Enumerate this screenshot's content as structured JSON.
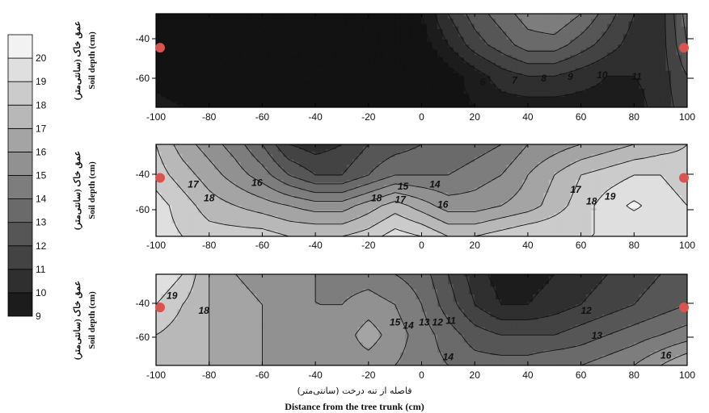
{
  "chart_data": {
    "type": "heatmap",
    "x_title_fa": "فاصله از تنه درخت (سانتی‌متر)",
    "x_title_en": "Distance from the tree trunk (cm)",
    "colorbar": {
      "min": 9,
      "max": 21,
      "labels": [
        9,
        10,
        11,
        12,
        13,
        14,
        15,
        16,
        17,
        18,
        19,
        20
      ]
    },
    "panels": [
      {
        "ylabel_fa": "عمق خاک (سانتی‌متر)",
        "ylabel_en": "Soil depth (cm)",
        "x_ticks": [
          -100,
          -80,
          -60,
          -40,
          -20,
          0,
          20,
          40,
          60,
          80,
          100
        ],
        "y_ticks": [
          -40,
          -60
        ],
        "xlim": [
          -100,
          100
        ],
        "ylim": [
          -75,
          -20
        ],
        "sample_points": [
          {
            "x": -100,
            "y": -40
          },
          {
            "x": 100,
            "y": -40
          }
        ],
        "contour_labels": [
          {
            "text": "8",
            "x": -68,
            "y": -44
          },
          {
            "text": "7",
            "x": -58,
            "y": -44
          },
          {
            "text": "8",
            "x": -46,
            "y": -44
          },
          {
            "text": "6",
            "x": -33,
            "y": -44
          },
          {
            "text": "4",
            "x": -15,
            "y": -44
          },
          {
            "text": "6",
            "x": 23,
            "y": -60
          },
          {
            "text": "7",
            "x": 35,
            "y": -59
          },
          {
            "text": "8",
            "x": 46,
            "y": -58
          },
          {
            "text": "9",
            "x": 56,
            "y": -57
          },
          {
            "text": "10",
            "x": 68,
            "y": -56
          },
          {
            "text": "11",
            "x": 81,
            "y": -57
          }
        ],
        "value_field": [
          [
            7,
            6.5,
            6,
            5.5,
            4.5,
            3.5,
            3,
            3.5,
            5,
            7,
            9,
            11,
            12.5,
            13.5,
            14.5,
            15,
            14,
            12.5,
            11,
            10.5,
            13.5
          ],
          [
            7.5,
            7.5,
            7,
            6.5,
            5.5,
            4.5,
            4,
            4.5,
            5.5,
            7,
            8.5,
            10,
            11.5,
            12.5,
            13.5,
            13.5,
            12.5,
            11.5,
            10.5,
            10.5,
            13
          ],
          [
            8.5,
            8,
            7.5,
            7,
            6.5,
            6,
            5.5,
            5.5,
            6,
            6.5,
            7.5,
            8.5,
            9.5,
            10.5,
            11,
            11,
            10.5,
            10,
            10,
            10.5,
            12
          ],
          [
            9.5,
            9,
            8.5,
            8,
            8,
            7.5,
            7,
            7,
            7,
            7.5,
            8,
            8.5,
            9,
            9.5,
            9.5,
            9.5,
            9.5,
            9.5,
            9.5,
            10.5,
            11.5
          ]
        ]
      },
      {
        "ylabel_fa": "عمق خاک (سانتی‌متر)",
        "ylabel_en": "Soil depth (cm)",
        "x_ticks": [
          -100,
          -80,
          -60,
          -40,
          -20,
          0,
          20,
          40,
          60,
          80,
          100
        ],
        "y_ticks": [
          -40,
          -60
        ],
        "xlim": [
          -100,
          100
        ],
        "ylim": [
          -75,
          -20
        ],
        "sample_points": [
          {
            "x": -100,
            "y": -40
          },
          {
            "x": 100,
            "y": -40
          }
        ],
        "contour_labels": [
          {
            "text": "17",
            "x": -86,
            "y": -44
          },
          {
            "text": "16",
            "x": -62,
            "y": -43
          },
          {
            "text": "18",
            "x": -80,
            "y": -52
          },
          {
            "text": "15",
            "x": -7,
            "y": -45
          },
          {
            "text": "14",
            "x": 5,
            "y": -44
          },
          {
            "text": "18",
            "x": -17,
            "y": -52
          },
          {
            "text": "17",
            "x": -8,
            "y": -53
          },
          {
            "text": "16",
            "x": 8,
            "y": -56
          },
          {
            "text": "17",
            "x": 58,
            "y": -47
          },
          {
            "text": "19",
            "x": 71,
            "y": -51
          },
          {
            "text": "18",
            "x": 64,
            "y": -54
          }
        ],
        "value_field": [
          [
            18,
            16.5,
            15.5,
            14.5,
            13,
            11,
            10.5,
            11,
            12,
            12.5,
            13,
            13,
            13.5,
            14,
            15,
            15.5,
            16,
            16.5,
            17,
            17.5,
            18
          ],
          [
            18.5,
            17.5,
            16.5,
            15.5,
            14.5,
            13,
            12,
            12,
            13,
            14,
            14,
            14,
            14.5,
            15,
            16,
            17,
            18,
            18.5,
            19,
            19,
            18.5
          ],
          [
            19.5,
            18.5,
            17.5,
            17,
            16.5,
            16,
            15.5,
            15.5,
            16.5,
            17.5,
            16.5,
            15.5,
            15.5,
            16,
            16.5,
            17.5,
            18.5,
            19.5,
            20.2,
            19.5,
            19
          ],
          [
            19.5,
            19,
            18.5,
            18.5,
            18.5,
            18,
            18,
            18,
            18.5,
            19.5,
            19,
            18,
            18,
            18.5,
            19,
            19,
            19,
            19,
            19,
            19,
            19
          ]
        ]
      },
      {
        "ylabel_fa": "عمق خاک (سانتی‌متر)",
        "ylabel_en": "Soil depth (cm)",
        "x_ticks": [
          -100,
          -80,
          -60,
          -40,
          -20,
          0,
          20,
          40,
          60,
          80,
          100
        ],
        "y_ticks": [
          -40,
          -60
        ],
        "xlim": [
          -100,
          100
        ],
        "ylim": [
          -75,
          -20
        ],
        "sample_points": [
          {
            "x": -100,
            "y": -40
          },
          {
            "x": 100,
            "y": -40
          }
        ],
        "contour_labels": [
          {
            "text": "19",
            "x": -94,
            "y": -33
          },
          {
            "text": "18",
            "x": -82,
            "y": -42
          },
          {
            "text": "15",
            "x": -10,
            "y": -49
          },
          {
            "text": "14",
            "x": -5,
            "y": -51
          },
          {
            "text": "13",
            "x": 1,
            "y": -49
          },
          {
            "text": "12",
            "x": 6,
            "y": -49
          },
          {
            "text": "11",
            "x": 11,
            "y": -48
          },
          {
            "text": "12",
            "x": 62,
            "y": -42
          },
          {
            "text": "13",
            "x": 66,
            "y": -57
          },
          {
            "text": "14",
            "x": 10,
            "y": -70
          },
          {
            "text": "16",
            "x": 92,
            "y": -69
          }
        ],
        "value_field": [
          [
            20,
            19,
            17,
            16,
            15.5,
            15.5,
            15,
            14.5,
            14.5,
            14,
            13.5,
            12,
            10.5,
            9.5,
            9.5,
            10,
            10.5,
            11,
            11.5,
            12,
            13
          ],
          [
            19,
            18,
            17,
            16.5,
            16,
            15.5,
            15,
            15,
            15.5,
            15,
            14,
            12.5,
            11,
            10,
            10,
            10.5,
            11,
            11.5,
            12,
            12.5,
            13
          ],
          [
            18,
            17.5,
            17,
            16.5,
            16,
            15.5,
            15.5,
            15.5,
            16.5,
            15.5,
            14.5,
            13.5,
            12.5,
            12,
            12,
            12,
            12.5,
            13,
            13.5,
            14,
            14.5
          ],
          [
            17.5,
            17,
            17,
            16.5,
            16,
            15.5,
            15.5,
            15.5,
            15.5,
            15,
            14.5,
            14,
            13.5,
            13.5,
            13.5,
            14,
            14,
            14.5,
            15,
            16,
            17
          ]
        ]
      }
    ]
  }
}
